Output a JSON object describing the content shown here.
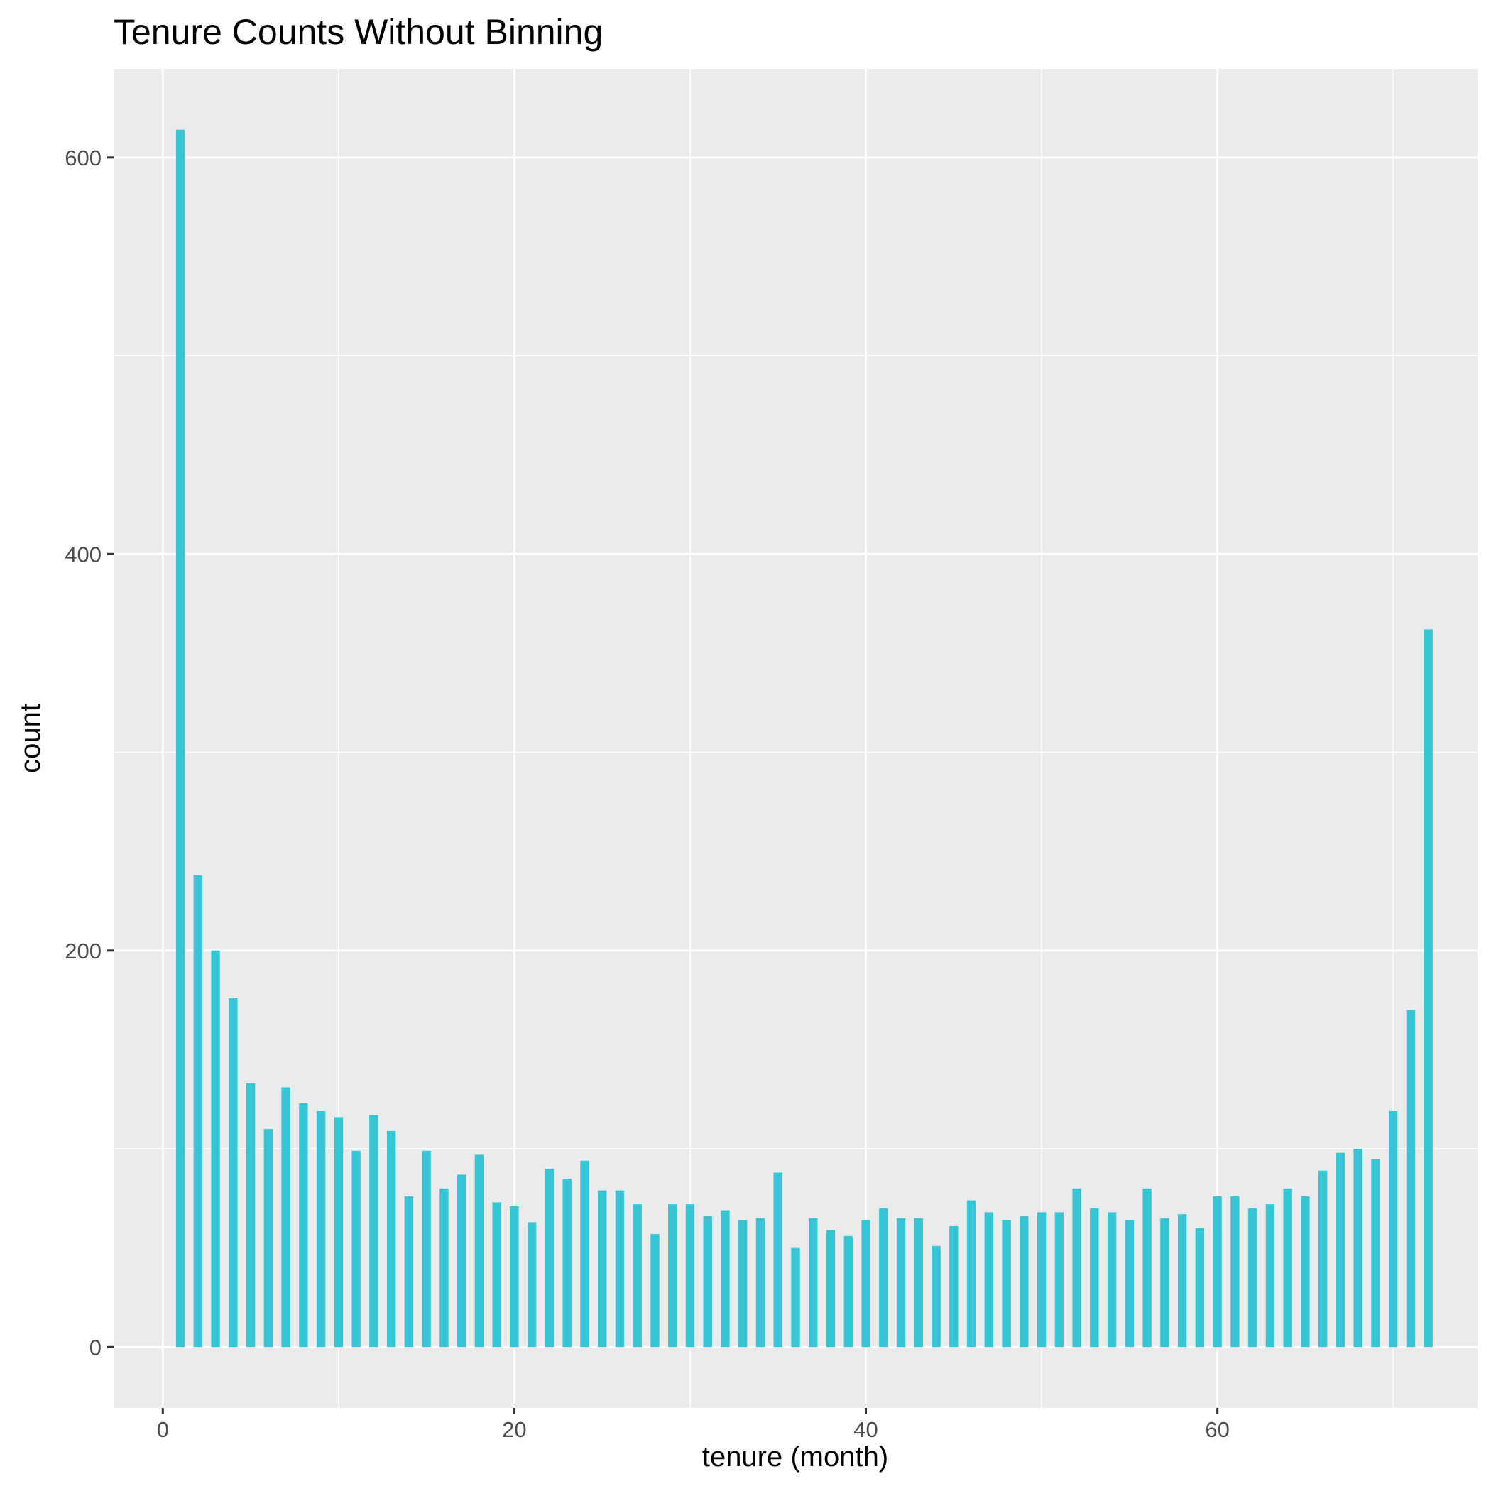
{
  "chart_data": {
    "type": "bar",
    "title": "Tenure Counts Without Binning",
    "xlabel": "tenure (month)",
    "ylabel": "count",
    "x": [
      1,
      2,
      3,
      4,
      5,
      6,
      7,
      8,
      9,
      10,
      11,
      12,
      13,
      14,
      15,
      16,
      17,
      18,
      19,
      20,
      21,
      22,
      23,
      24,
      25,
      26,
      27,
      28,
      29,
      30,
      31,
      32,
      33,
      34,
      35,
      36,
      37,
      38,
      39,
      40,
      41,
      42,
      43,
      44,
      45,
      46,
      47,
      48,
      49,
      50,
      51,
      52,
      53,
      54,
      55,
      56,
      57,
      58,
      59,
      60,
      61,
      62,
      63,
      64,
      65,
      66,
      67,
      68,
      69,
      70,
      71,
      72
    ],
    "values": [
      614,
      238,
      200,
      176,
      133,
      110,
      131,
      123,
      119,
      116,
      99,
      117,
      109,
      76,
      99,
      80,
      87,
      97,
      73,
      71,
      63,
      90,
      85,
      94,
      79,
      79,
      72,
      57,
      72,
      72,
      66,
      69,
      64,
      65,
      88,
      50,
      65,
      59,
      56,
      64,
      70,
      65,
      65,
      51,
      61,
      74,
      68,
      64,
      66,
      68,
      68,
      80,
      70,
      68,
      64,
      80,
      65,
      67,
      60,
      76,
      76,
      70,
      72,
      80,
      76,
      89,
      98,
      100,
      95,
      119,
      170,
      362
    ],
    "xlim": [
      -2.8,
      74.8
    ],
    "ylim": [
      -30.7,
      644.7
    ],
    "x_ticks": [
      0,
      20,
      40,
      60
    ],
    "x_tick_labels": [
      "0",
      "20",
      "40",
      "60"
    ],
    "y_ticks": [
      0,
      200,
      400,
      600
    ],
    "y_tick_labels": [
      "0",
      "200",
      "400",
      "600"
    ],
    "bar_width": 0.5,
    "grid": true,
    "legend": "none",
    "colors": {
      "bar": "#36C5D4",
      "panel": "#EBEBEB",
      "grid": "#FFFFFF",
      "tick_label": "#4D4D4D",
      "tick_mark": "#333333"
    }
  }
}
